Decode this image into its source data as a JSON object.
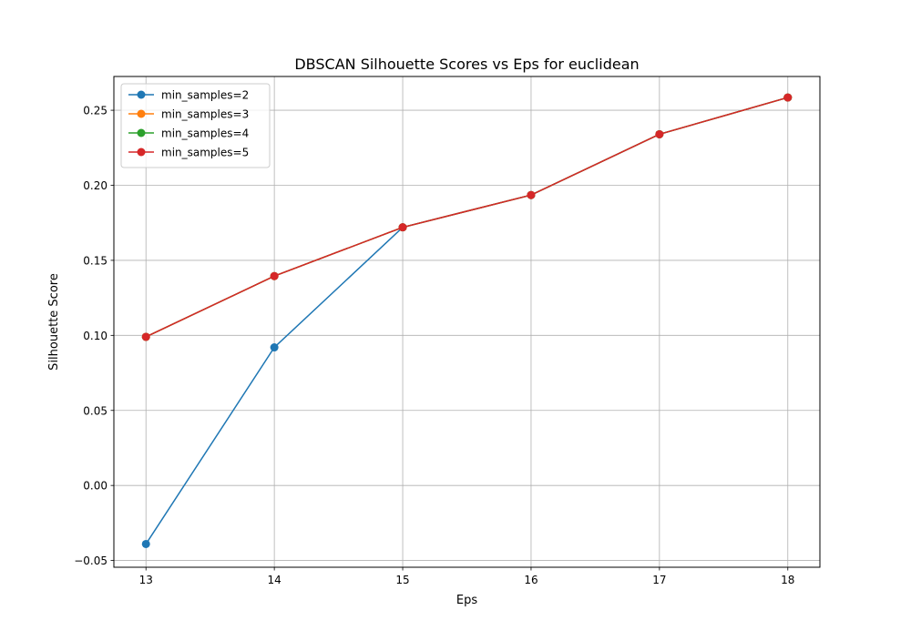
{
  "chart_data": {
    "type": "line",
    "title": "DBSCAN Silhouette Scores vs Eps for euclidean",
    "xlabel": "Eps",
    "ylabel": "Silhouette Score",
    "x": [
      13,
      14,
      15,
      16,
      17,
      18
    ],
    "xlim": [
      12.75,
      18.25
    ],
    "ylim": [
      -0.0545,
      0.2725
    ],
    "x_ticks": [
      13,
      14,
      15,
      16,
      17,
      18
    ],
    "x_tick_labels": [
      "13",
      "14",
      "15",
      "16",
      "17",
      "18"
    ],
    "y_ticks": [
      -0.05,
      0.0,
      0.05,
      0.1,
      0.15,
      0.2,
      0.25
    ],
    "y_tick_labels": [
      "−0.05",
      "0.00",
      "0.05",
      "0.10",
      "0.15",
      "0.20",
      "0.25"
    ],
    "grid": true,
    "legend_position": "upper-left",
    "series": [
      {
        "name": "min_samples=2",
        "color": "#1f77b4",
        "values": [
          -0.039,
          0.092,
          0.172,
          0.1935,
          0.234,
          0.2585
        ]
      },
      {
        "name": "min_samples=3",
        "color": "#ff7f0e",
        "values": [
          0.099,
          0.1395,
          0.172,
          0.1935,
          0.234,
          0.2585
        ]
      },
      {
        "name": "min_samples=4",
        "color": "#2ca02c",
        "values": [
          0.099,
          0.1395,
          0.172,
          0.1935,
          0.234,
          0.2585
        ]
      },
      {
        "name": "min_samples=5",
        "color": "#d62728",
        "values": [
          0.099,
          0.1395,
          0.172,
          0.1935,
          0.234,
          0.2585
        ]
      }
    ]
  }
}
